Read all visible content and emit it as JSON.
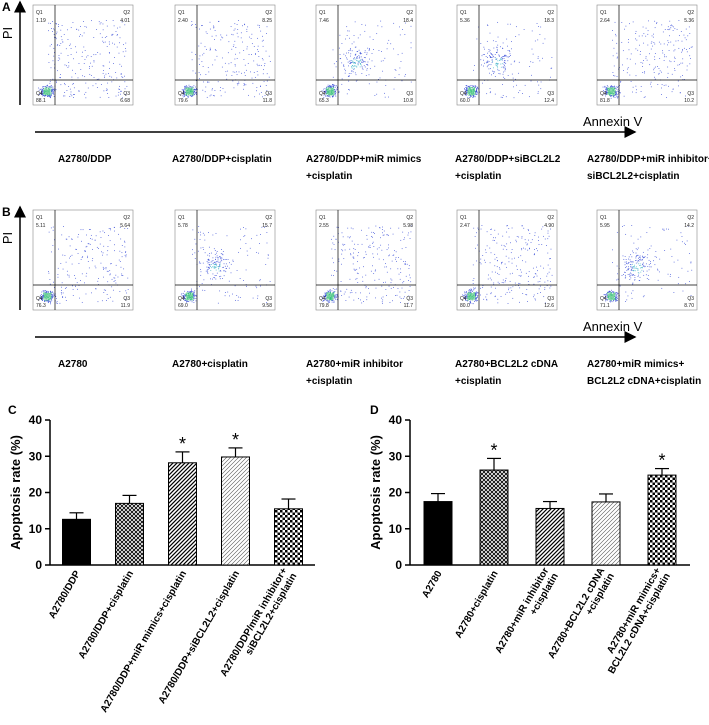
{
  "panels": [
    {
      "label": "A",
      "y_axis": "PI",
      "x_axis": "Annexin V",
      "quadrant_names": [
        "Q1",
        "Q2",
        "Q3",
        "Q4"
      ],
      "plots": [
        {
          "sample": [
            "A2780/DDP"
          ],
          "Q1": "1.19",
          "Q2": "4.01",
          "Q3": "6.68",
          "Q4": "88.1"
        },
        {
          "sample": [
            "A2780/DDP+cisplatin"
          ],
          "Q1": "2.40",
          "Q2": "8.25",
          "Q3": "11.8",
          "Q4": "79.6"
        },
        {
          "sample": [
            "A2780/DDP+miR mimics",
            "+cisplatin"
          ],
          "Q1": "7.46",
          "Q2": "18.4",
          "Q3": "10.8",
          "Q4": "65.3"
        },
        {
          "sample": [
            "A2780/DDP+siBCL2L2",
            "+cisplatin"
          ],
          "Q1": "5.36",
          "Q2": "18.3",
          "Q3": "12.4",
          "Q4": "60.0"
        },
        {
          "sample": [
            "A2780/DDP+miR inhibitor+",
            "siBCL2L2+cisplatin"
          ],
          "Q1": "2.64",
          "Q2": "5.36",
          "Q3": "10.2",
          "Q4": "81.8"
        }
      ]
    },
    {
      "label": "B",
      "y_axis": "PI",
      "x_axis": "Annexin V",
      "quadrant_names": [
        "Q1",
        "Q2",
        "Q3",
        "Q4"
      ],
      "plots": [
        {
          "sample": [
            "A2780"
          ],
          "Q1": "5.11",
          "Q2": "5.64",
          "Q3": "11.9",
          "Q4": "76.3"
        },
        {
          "sample": [
            "A2780+cisplatin"
          ],
          "Q1": "5.78",
          "Q2": "15.7",
          "Q3": "9.58",
          "Q4": "69.0"
        },
        {
          "sample": [
            "A2780+miR inhibitor",
            "+cisplatin"
          ],
          "Q1": "2.55",
          "Q2": "5.98",
          "Q3": "11.7",
          "Q4": "79.8"
        },
        {
          "sample": [
            "A2780+BCL2L2 cDNA",
            "+cisplatin"
          ],
          "Q1": "2.47",
          "Q2": "4.90",
          "Q3": "12.6",
          "Q4": "80.0"
        },
        {
          "sample": [
            "A2780+miR mimics+",
            "BCL2L2 cDNA+cisplatin"
          ],
          "Q1": "5.95",
          "Q2": "14.2",
          "Q3": "8.70",
          "Q4": "71.1"
        }
      ]
    }
  ],
  "chart_data": [
    {
      "type": "bar",
      "label": "C",
      "ylabel": "Apoptosis rate (%)",
      "categories": [
        [
          "A2780/DDP"
        ],
        [
          "A2780/DDP+cisplatin"
        ],
        [
          "A2780/DDP+miR mimics+cisplatin"
        ],
        [
          "A2780/DDP+siBCL2L2+cisplatin"
        ],
        [
          "A2780/DDP/miR inhibitor+",
          "siBCL2L2+cisplatin"
        ]
      ],
      "values": [
        12.6,
        17.0,
        28.2,
        29.8,
        15.5
      ],
      "errors": [
        1.8,
        2.2,
        3.0,
        2.5,
        2.7
      ],
      "significance": [
        null,
        null,
        "*",
        "*",
        null
      ],
      "patterns": [
        "solid",
        "crosshatch",
        "diagonal",
        "diagonal-light",
        "checker"
      ],
      "color": "#000000",
      "ylim": [
        0,
        40
      ],
      "yticks": [
        0,
        10,
        20,
        30,
        40
      ]
    },
    {
      "type": "bar",
      "label": "D",
      "ylabel": "Apoptosis rate (%)",
      "categories": [
        [
          "A2780"
        ],
        [
          "A2780+cisplatin"
        ],
        [
          "A2780+miR inhibitor",
          "+cisplatin"
        ],
        [
          "A2780+BCL2L2 cDNA",
          "+cisplatin"
        ],
        [
          "A2780+miR mimics+",
          "BCL2L2 cDNA+cisplatin"
        ]
      ],
      "values": [
        17.5,
        26.2,
        15.6,
        17.4,
        24.8
      ],
      "errors": [
        2.2,
        3.2,
        1.9,
        2.2,
        1.8
      ],
      "significance": [
        null,
        "*",
        null,
        null,
        "*"
      ],
      "patterns": [
        "solid",
        "crosshatch",
        "diagonal",
        "diagonal-light",
        "checker"
      ],
      "color": "#000000",
      "ylim": [
        0,
        40
      ],
      "yticks": [
        0,
        10,
        20,
        30,
        40
      ]
    }
  ]
}
